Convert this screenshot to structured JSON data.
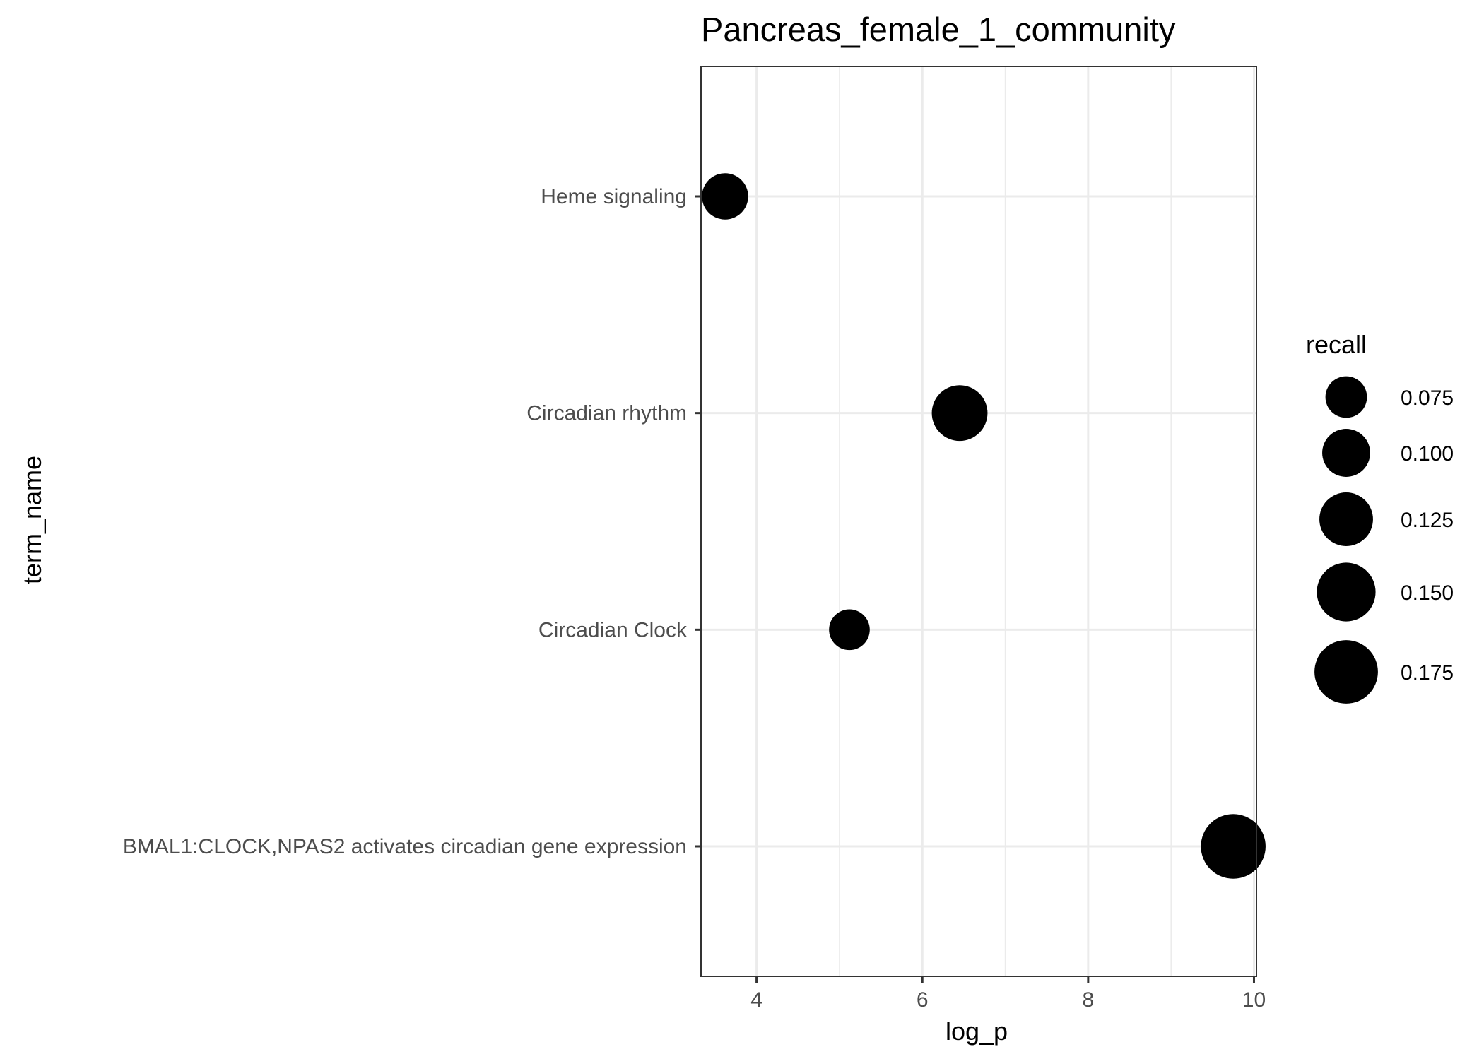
{
  "chart_data": {
    "type": "scatter",
    "title": "Pancreas_female_1_community",
    "xlabel": "log_p",
    "ylabel": "term_name",
    "xlim": [
      3.33,
      10.03
    ],
    "x_ticks": [
      4,
      6,
      8,
      10
    ],
    "grid": true,
    "categories": [
      "BMAL1:CLOCK,NPAS2 activates circadian gene expression",
      "Circadian Clock",
      "Circadian rhythm",
      "Heme signaling"
    ],
    "points": [
      {
        "term_name": "Heme signaling",
        "log_p": 3.62,
        "recall": 0.093
      },
      {
        "term_name": "Circadian rhythm",
        "log_p": 6.45,
        "recall": 0.135
      },
      {
        "term_name": "Circadian Clock",
        "log_p": 5.12,
        "recall": 0.072
      },
      {
        "term_name": "BMAL1:CLOCK,NPAS2 activates circadian gene expression",
        "log_p": 9.75,
        "recall": 0.182
      }
    ],
    "size_legend": {
      "title": "recall",
      "placement": "right",
      "values": [
        0.075,
        0.1,
        0.125,
        0.15,
        0.175
      ],
      "labels": [
        "0.075",
        "0.100",
        "0.125",
        "0.150",
        "0.175"
      ]
    },
    "colors": {
      "point": "#000000",
      "grid": "#ebebeb",
      "panel_border": "#333333"
    }
  }
}
